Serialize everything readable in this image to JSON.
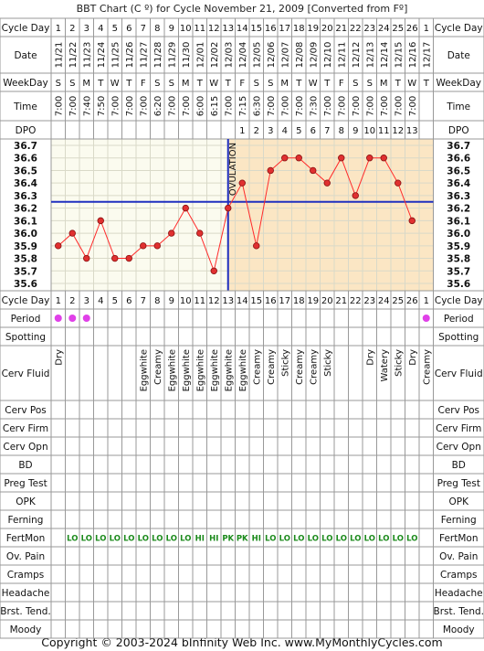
{
  "title": "BBT Chart (C º) for Cycle November 21, 2009  [Converted from Fº]",
  "footer": "Copyright © 2003-2024 bInfinity Web Inc.    www.MyMonthlyCycles.com",
  "labels": {
    "cycle_day": "Cycle Day",
    "date": "Date",
    "weekday": "WeekDay",
    "time": "Time",
    "dpo": "DPO",
    "ovulation": "OVULATION"
  },
  "columns": {
    "cycle_day": [
      "1",
      "2",
      "3",
      "4",
      "5",
      "6",
      "7",
      "8",
      "9",
      "10",
      "11",
      "12",
      "13",
      "14",
      "15",
      "16",
      "17",
      "18",
      "19",
      "20",
      "21",
      "22",
      "23",
      "24",
      "25",
      "26",
      "1"
    ],
    "date": [
      "11/21",
      "11/22",
      "11/23",
      "11/24",
      "11/25",
      "11/26",
      "11/27",
      "11/28",
      "11/29",
      "11/30",
      "12/01",
      "12/02",
      "12/03",
      "12/04",
      "12/05",
      "12/06",
      "12/07",
      "12/08",
      "12/09",
      "12/10",
      "12/11",
      "12/12",
      "12/13",
      "12/14",
      "12/15",
      "12/16",
      "12/17"
    ],
    "weekday": [
      "S",
      "S",
      "M",
      "T",
      "W",
      "T",
      "F",
      "S",
      "S",
      "M",
      "T",
      "W",
      "T",
      "F",
      "S",
      "S",
      "M",
      "T",
      "W",
      "T",
      "F",
      "S",
      "S",
      "M",
      "T",
      "W",
      "T"
    ],
    "time": [
      "7:00",
      "7:00",
      "7:40",
      "7:50",
      "7:00",
      "7:00",
      "7:00",
      "6:20",
      "7:00",
      "7:00",
      "6:00",
      "6:15",
      "7:00",
      "7:15",
      "6:30",
      "7:00",
      "7:00",
      "7:00",
      "7:30",
      "7:00",
      "7:00",
      "7:00",
      "7:00",
      "7:00",
      "7:00",
      "7:00",
      ""
    ],
    "dpo": [
      "",
      "",
      "",
      "",
      "",
      "",
      "",
      "",
      "",
      "",
      "",
      "",
      "",
      "1",
      "2",
      "3",
      "4",
      "5",
      "6",
      "7",
      "8",
      "9",
      "10",
      "11",
      "12",
      "13",
      ""
    ]
  },
  "chart_data": {
    "type": "line",
    "x": [
      1,
      2,
      3,
      4,
      5,
      6,
      7,
      8,
      9,
      10,
      11,
      12,
      13,
      14,
      15,
      16,
      17,
      18,
      19,
      20,
      21,
      22,
      23,
      24,
      25,
      26
    ],
    "values": [
      35.9,
      36.0,
      35.8,
      36.1,
      35.8,
      35.8,
      35.9,
      35.9,
      36.0,
      36.2,
      36.0,
      35.7,
      36.2,
      36.4,
      35.9,
      36.5,
      36.6,
      36.6,
      36.5,
      36.4,
      36.6,
      36.3,
      36.6,
      36.6,
      36.4,
      36.1
    ],
    "coverline": 36.25,
    "ovulation_day": 13,
    "ylim": [
      35.6,
      36.7
    ],
    "y_ticks": [
      "36.7",
      "36.6",
      "36.5",
      "36.4",
      "36.3",
      "36.2",
      "36.1",
      "36.0",
      "35.9",
      "35.8",
      "35.7",
      "35.6"
    ],
    "colors": {
      "line": "#ff2a2a",
      "point": "#e03030",
      "coverline": "#1f2fbf",
      "luteal": "#fbe6c4",
      "follicular": "#fbfbef",
      "grid": "#d9d9c8"
    }
  },
  "rows": [
    {
      "label": "Period",
      "kind": "dots",
      "values": [
        "1",
        "1",
        "1",
        "",
        "",
        "",
        "",
        "",
        "",
        "",
        "",
        "",
        "",
        "",
        "",
        "",
        "",
        "",
        "",
        "",
        "",
        "",
        "",
        "",
        "",
        "",
        "1"
      ],
      "color": "#e040e8"
    },
    {
      "label": "Spotting",
      "kind": "text",
      "values": []
    },
    {
      "label": "Cerv Fluid",
      "kind": "vertical",
      "values": [
        "Dry",
        "",
        "",
        "",
        "",
        "",
        "Eggwhite",
        "Creamy",
        "Eggwhite",
        "Eggwhite",
        "Eggwhite",
        "Eggwhite",
        "Eggwhite",
        "Eggwhite",
        "Creamy",
        "Creamy",
        "Sticky",
        "Creamy",
        "Creamy",
        "Sticky",
        "",
        "",
        "Dry",
        "Watery",
        "Sticky",
        "Dry",
        "Creamy"
      ]
    },
    {
      "label": "Cerv Pos",
      "kind": "text",
      "values": []
    },
    {
      "label": "Cerv Firm",
      "kind": "text",
      "values": []
    },
    {
      "label": "Cerv Opn",
      "kind": "text",
      "values": []
    },
    {
      "label": "BD",
      "kind": "text",
      "values": []
    },
    {
      "label": "Preg Test",
      "kind": "text",
      "values": []
    },
    {
      "label": "OPK",
      "kind": "text",
      "values": []
    },
    {
      "label": "Ferning",
      "kind": "text",
      "values": []
    },
    {
      "label": "FertMon",
      "kind": "green",
      "values": [
        "",
        "LO",
        "LO",
        "LO",
        "LO",
        "LO",
        "LO",
        "LO",
        "LO",
        "LO",
        "HI",
        "HI",
        "PK",
        "PK",
        "HI",
        "LO",
        "LO",
        "LO",
        "LO",
        "LO",
        "LO",
        "LO",
        "LO",
        "LO",
        "LO",
        "LO",
        ""
      ],
      "color": "#1b8a1b"
    },
    {
      "label": "Ov. Pain",
      "kind": "text",
      "values": []
    },
    {
      "label": "Cramps",
      "kind": "text",
      "values": []
    },
    {
      "label": "Headache",
      "kind": "text",
      "values": []
    },
    {
      "label": "Brst. Tend.",
      "kind": "text",
      "values": []
    },
    {
      "label": "Moody",
      "kind": "text",
      "values": []
    }
  ]
}
